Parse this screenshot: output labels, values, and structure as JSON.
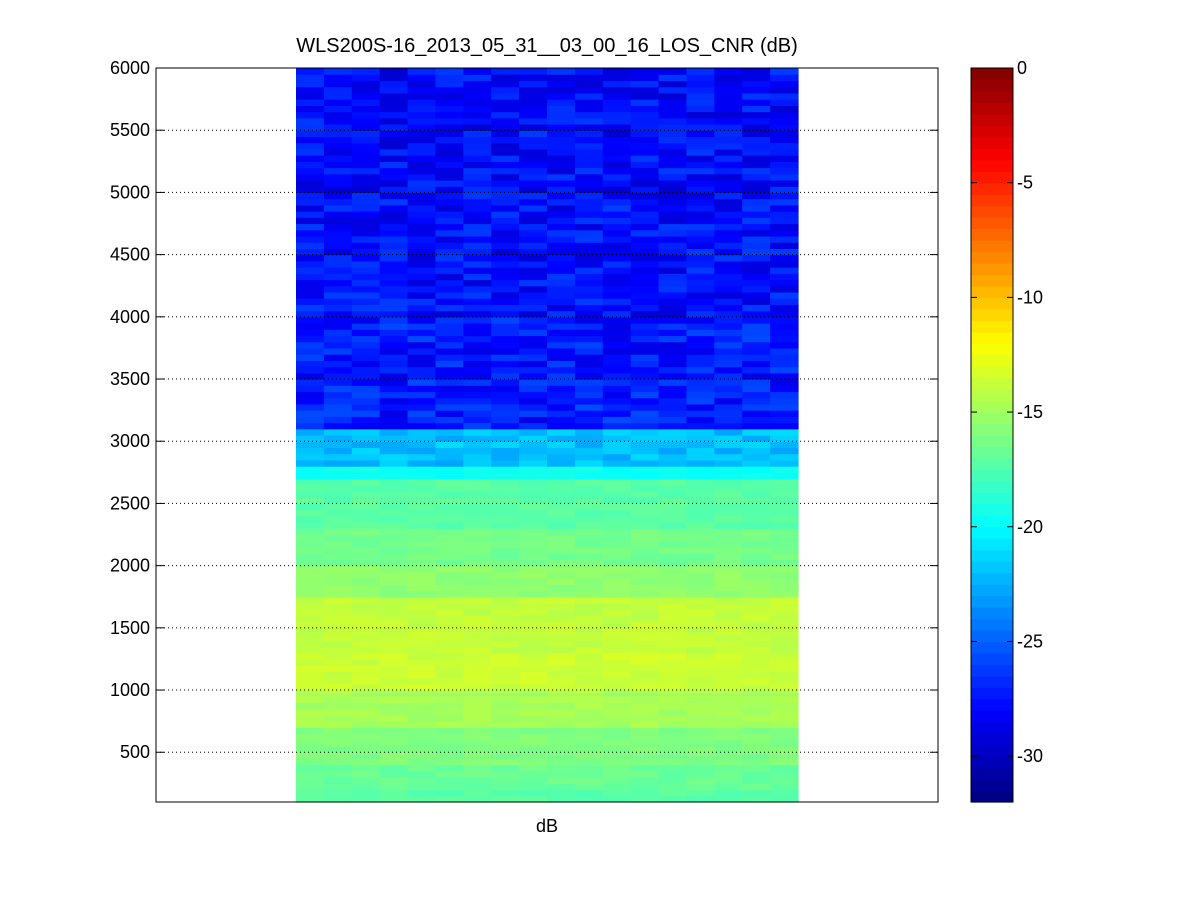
{
  "chart_data": {
    "type": "heatmap",
    "title": "WLS200S-16_2013_05_31__03_00_16_LOS_CNR (dB)",
    "xlabel": "dB",
    "ylabel": "",
    "ylim": [
      100,
      6000
    ],
    "yticks": [
      500,
      1000,
      1500,
      2000,
      2500,
      3000,
      3500,
      4000,
      4500,
      5000,
      5500,
      6000
    ],
    "grid": "horizontal-dotted",
    "num_columns": 18,
    "colorbar": {
      "colormap": "jet",
      "range": [
        -32,
        0
      ],
      "ticks": [
        0,
        -5,
        -10,
        -15,
        -20,
        -25,
        -30
      ]
    },
    "profile": [
      {
        "range": [
          100,
          200
        ],
        "cnr": -17.2
      },
      {
        "range": [
          200,
          400
        ],
        "cnr": -16.7
      },
      {
        "range": [
          400,
          700
        ],
        "cnr": -16.0
      },
      {
        "range": [
          700,
          1000
        ],
        "cnr": -14.8
      },
      {
        "range": [
          1000,
          1300
        ],
        "cnr": -13.6
      },
      {
        "range": [
          1300,
          1750
        ],
        "cnr": -13.9
      },
      {
        "range": [
          1750,
          2000
        ],
        "cnr": -15.5
      },
      {
        "range": [
          2000,
          2300
        ],
        "cnr": -16.4
      },
      {
        "range": [
          2300,
          2700
        ],
        "cnr": -17.2
      },
      {
        "range": [
          2700,
          2800
        ],
        "cnr": -19.7
      },
      {
        "range": [
          2800,
          3100
        ],
        "cnr": -22.0
      },
      {
        "range": [
          3100,
          4000
        ],
        "cnr": -27.2
      },
      {
        "range": [
          4000,
          5000
        ],
        "cnr": -27.6
      },
      {
        "range": [
          5000,
          6000
        ],
        "cnr": -27.8
      }
    ]
  }
}
